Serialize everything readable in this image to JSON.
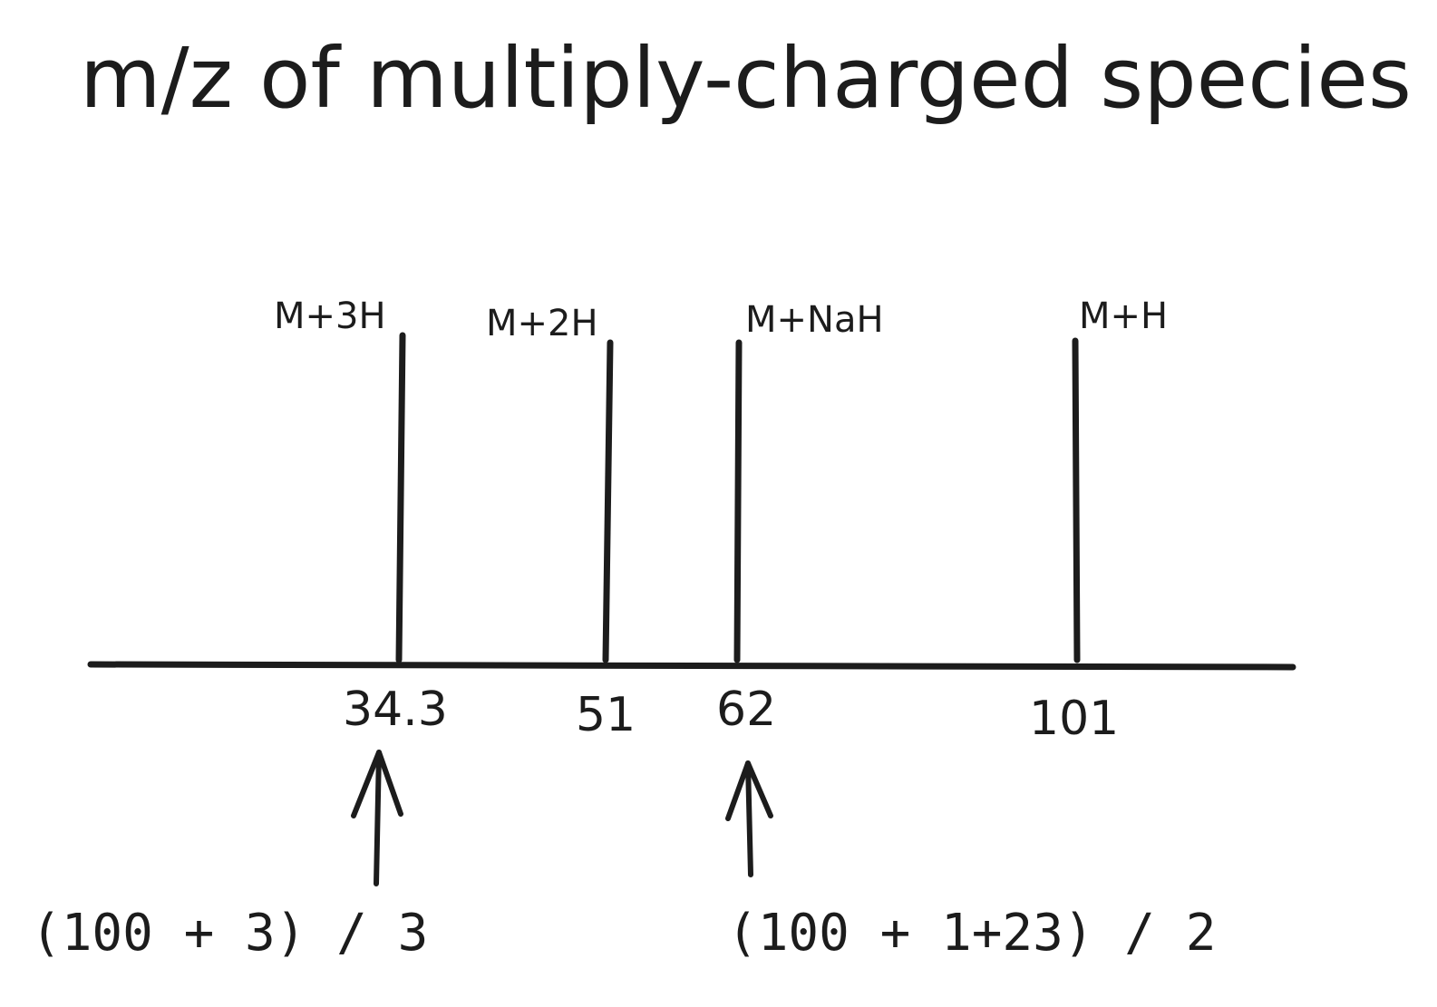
{
  "title": "m/z of multiply-charged species",
  "chart_data": {
    "type": "bar",
    "peaks": [
      {
        "label": "M+3H",
        "mz": 34.3,
        "mz_label": "34.3"
      },
      {
        "label": "M+2H",
        "mz": 51,
        "mz_label": "51"
      },
      {
        "label": "M+NaH",
        "mz": 62,
        "mz_label": "62"
      },
      {
        "label": "M+H",
        "mz": 101,
        "mz_label": "101"
      }
    ]
  },
  "annotations": [
    {
      "target": "34.3",
      "text": "(100 + 3) / 3"
    },
    {
      "target": "62",
      "text": "(100 + 1+23) / 2"
    }
  ],
  "colors": {
    "ink": "#1c1c1c",
    "background": "#ffffff"
  }
}
